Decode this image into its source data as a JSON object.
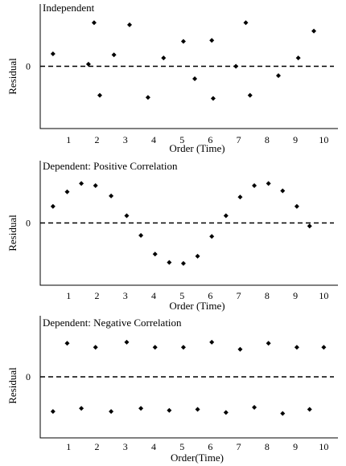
{
  "chart_data": [
    {
      "type": "scatter",
      "title": "Independent",
      "xlabel": "Order (Time)",
      "ylabel": "Residual",
      "zero_label": "0",
      "x_ticks": [
        "1",
        "2",
        "3",
        "4",
        "5",
        "6",
        "7",
        "8",
        "9",
        "10"
      ],
      "xlim": [
        0,
        10.5
      ],
      "ylim": [
        -3,
        3
      ],
      "show_zero_line": true,
      "points": [
        {
          "x": 0.45,
          "y": 0.6
        },
        {
          "x": 1.7,
          "y": 0.1
        },
        {
          "x": 1.9,
          "y": 2.1
        },
        {
          "x": 2.1,
          "y": -1.4
        },
        {
          "x": 2.6,
          "y": 0.55
        },
        {
          "x": 3.15,
          "y": 2.0
        },
        {
          "x": 3.8,
          "y": -1.5
        },
        {
          "x": 4.35,
          "y": 0.4
        },
        {
          "x": 5.05,
          "y": 1.2
        },
        {
          "x": 5.45,
          "y": -0.6
        },
        {
          "x": 6.05,
          "y": 1.25
        },
        {
          "x": 6.1,
          "y": -1.55
        },
        {
          "x": 6.9,
          "y": 0.0
        },
        {
          "x": 7.25,
          "y": 2.1
        },
        {
          "x": 7.4,
          "y": -1.4
        },
        {
          "x": 8.4,
          "y": -0.45
        },
        {
          "x": 9.1,
          "y": 0.4
        },
        {
          "x": 9.65,
          "y": 1.7
        }
      ]
    },
    {
      "type": "scatter",
      "title": "Dependent: Positive Correlation",
      "xlabel": "Order (Time)",
      "ylabel": "Residual",
      "zero_label": "0",
      "x_ticks": [
        "1",
        "2",
        "3",
        "4",
        "5",
        "6",
        "7",
        "8",
        "9",
        "10"
      ],
      "xlim": [
        0,
        10.5
      ],
      "ylim": [
        -3,
        3
      ],
      "show_zero_line": true,
      "points": [
        {
          "x": 0.45,
          "y": 0.8
        },
        {
          "x": 0.95,
          "y": 1.5
        },
        {
          "x": 1.45,
          "y": 1.9
        },
        {
          "x": 1.95,
          "y": 1.8
        },
        {
          "x": 2.5,
          "y": 1.3
        },
        {
          "x": 3.05,
          "y": 0.35
        },
        {
          "x": 3.55,
          "y": -0.6
        },
        {
          "x": 4.05,
          "y": -1.5
        },
        {
          "x": 4.55,
          "y": -1.9
        },
        {
          "x": 5.05,
          "y": -1.95
        },
        {
          "x": 5.55,
          "y": -1.6
        },
        {
          "x": 6.05,
          "y": -0.65
        },
        {
          "x": 6.55,
          "y": 0.35
        },
        {
          "x": 7.05,
          "y": 1.25
        },
        {
          "x": 7.55,
          "y": 1.8
        },
        {
          "x": 8.05,
          "y": 1.9
        },
        {
          "x": 8.55,
          "y": 1.55
        },
        {
          "x": 9.05,
          "y": 0.8
        },
        {
          "x": 9.5,
          "y": -0.15
        }
      ]
    },
    {
      "type": "scatter",
      "title": "Dependent: Negative Correlation",
      "xlabel": "Order(Time)",
      "ylabel": "Residual",
      "zero_label": "0",
      "x_ticks": [
        "1",
        "2",
        "3",
        "4",
        "5",
        "6",
        "7",
        "8",
        "9",
        "10"
      ],
      "xlim": [
        0,
        10.5
      ],
      "ylim": [
        -3,
        3
      ],
      "show_zero_line": true,
      "points": [
        {
          "x": 0.45,
          "y": -1.7
        },
        {
          "x": 0.95,
          "y": 1.65
        },
        {
          "x": 1.45,
          "y": -1.55
        },
        {
          "x": 1.95,
          "y": 1.45
        },
        {
          "x": 2.5,
          "y": -1.7
        },
        {
          "x": 3.05,
          "y": 1.7
        },
        {
          "x": 3.55,
          "y": -1.55
        },
        {
          "x": 4.05,
          "y": 1.45
        },
        {
          "x": 4.55,
          "y": -1.65
        },
        {
          "x": 5.05,
          "y": 1.45
        },
        {
          "x": 5.55,
          "y": -1.6
        },
        {
          "x": 6.05,
          "y": 1.7
        },
        {
          "x": 6.55,
          "y": -1.75
        },
        {
          "x": 7.05,
          "y": 1.35
        },
        {
          "x": 7.55,
          "y": -1.5
        },
        {
          "x": 8.05,
          "y": 1.65
        },
        {
          "x": 8.55,
          "y": -1.8
        },
        {
          "x": 9.05,
          "y": 1.45
        },
        {
          "x": 9.5,
          "y": -1.6
        },
        {
          "x": 10.0,
          "y": 1.45
        }
      ]
    }
  ]
}
